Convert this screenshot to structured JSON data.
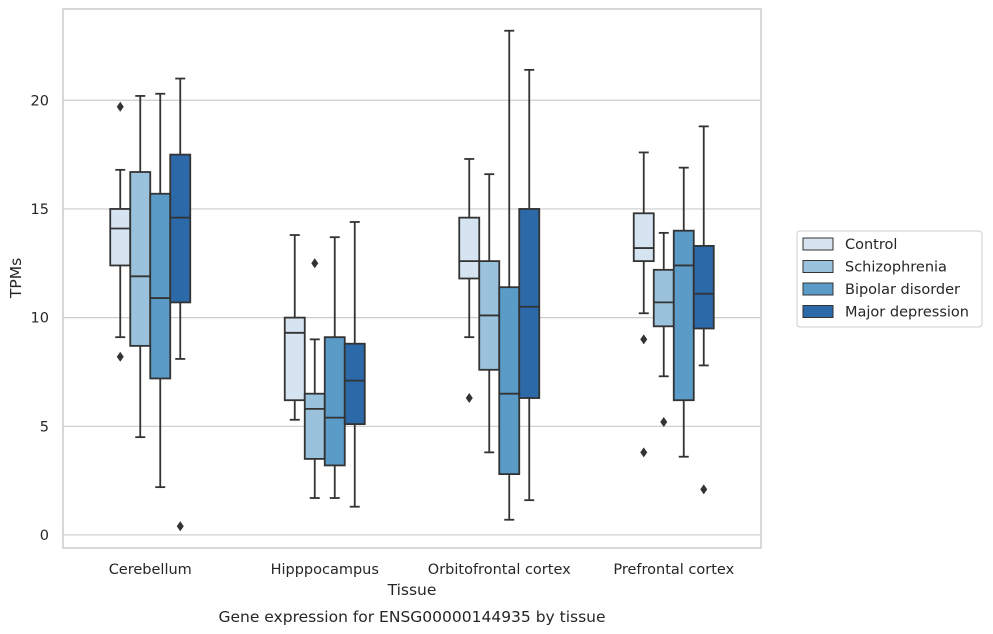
{
  "caption": "Gene expression for ENSG00000144935 by tissue",
  "chart_data": {
    "type": "box",
    "xlabel": "Tissue",
    "ylabel": "TPMs",
    "ylim": [
      -0.6,
      24.2
    ],
    "yticks": [
      0,
      5,
      10,
      15,
      20
    ],
    "grid": "horizontal",
    "legend_position": "right",
    "categories": [
      "Cerebellum",
      "Hipppocampus",
      "Orbitofrontal cortex",
      "Prefrontal cortex"
    ],
    "series": [
      {
        "name": "Control",
        "color": "#d6e4f2",
        "boxes": [
          {
            "whislo": 9.1,
            "q1": 12.4,
            "med": 14.1,
            "q3": 15.0,
            "whishi": 16.8,
            "fliers": [
              19.7,
              8.2
            ]
          },
          {
            "whislo": 5.3,
            "q1": 6.2,
            "med": 9.3,
            "q3": 10.0,
            "whishi": 13.8,
            "fliers": []
          },
          {
            "whislo": 9.1,
            "q1": 11.8,
            "med": 12.6,
            "q3": 14.6,
            "whishi": 17.3,
            "fliers": [
              6.3
            ]
          },
          {
            "whislo": 10.2,
            "q1": 12.6,
            "med": 13.2,
            "q3": 14.8,
            "whishi": 17.6,
            "fliers": [
              9.0,
              3.8
            ]
          }
        ]
      },
      {
        "name": "Schizophrenia",
        "color": "#9ac2dd",
        "boxes": [
          {
            "whislo": 4.5,
            "q1": 8.7,
            "med": 11.9,
            "q3": 16.7,
            "whishi": 20.2,
            "fliers": []
          },
          {
            "whislo": 1.7,
            "q1": 3.5,
            "med": 5.8,
            "q3": 6.5,
            "whishi": 9.0,
            "fliers": [
              12.5
            ]
          },
          {
            "whislo": 3.8,
            "q1": 7.6,
            "med": 10.1,
            "q3": 12.6,
            "whishi": 16.6,
            "fliers": []
          },
          {
            "whislo": 7.3,
            "q1": 9.6,
            "med": 10.7,
            "q3": 12.2,
            "whishi": 13.9,
            "fliers": [
              5.2
            ]
          }
        ]
      },
      {
        "name": "Bipolar disorder",
        "color": "#5a9bc8",
        "boxes": [
          {
            "whislo": 2.2,
            "q1": 7.2,
            "med": 10.9,
            "q3": 15.7,
            "whishi": 20.3,
            "fliers": []
          },
          {
            "whislo": 1.7,
            "q1": 3.2,
            "med": 5.4,
            "q3": 9.1,
            "whishi": 13.7,
            "fliers": []
          },
          {
            "whislo": 0.7,
            "q1": 2.8,
            "med": 6.5,
            "q3": 11.4,
            "whishi": 23.2,
            "fliers": []
          },
          {
            "whislo": 3.6,
            "q1": 6.2,
            "med": 12.4,
            "q3": 14.0,
            "whishi": 16.9,
            "fliers": []
          }
        ]
      },
      {
        "name": "Major depression",
        "color": "#2b69a9",
        "boxes": [
          {
            "whislo": 8.1,
            "q1": 10.7,
            "med": 14.6,
            "q3": 17.5,
            "whishi": 21.0,
            "fliers": [
              0.4
            ]
          },
          {
            "whislo": 1.3,
            "q1": 5.1,
            "med": 7.1,
            "q3": 8.8,
            "whishi": 14.4,
            "fliers": []
          },
          {
            "whislo": 1.6,
            "q1": 6.3,
            "med": 10.5,
            "q3": 15.0,
            "whishi": 21.4,
            "fliers": []
          },
          {
            "whislo": 7.8,
            "q1": 9.5,
            "med": 11.1,
            "q3": 13.3,
            "whishi": 18.8,
            "fliers": [
              2.1
            ]
          }
        ]
      }
    ]
  }
}
